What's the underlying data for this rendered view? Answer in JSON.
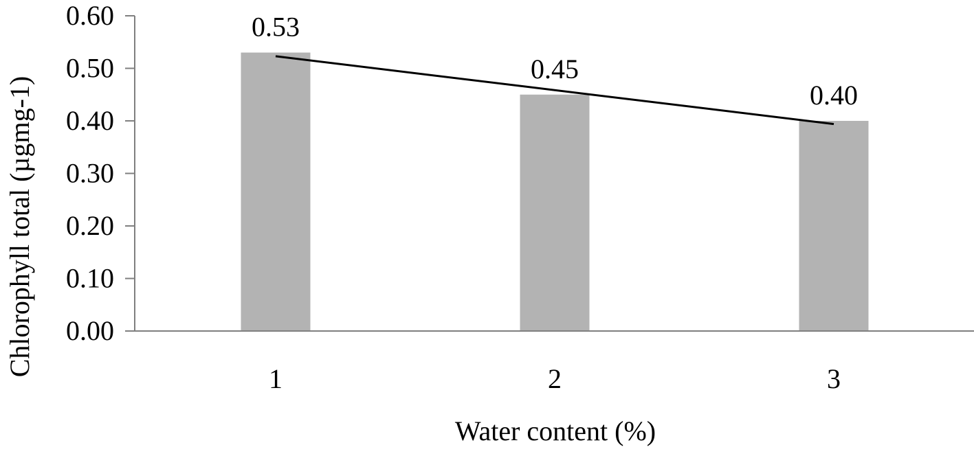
{
  "chart_data": {
    "type": "bar",
    "categories": [
      "1",
      "2",
      "3"
    ],
    "series": [
      {
        "values": [
          0.53,
          0.45,
          0.4
        ],
        "color": "#b3b3b3",
        "data_labels": [
          "0.53",
          "0.45",
          "0.40"
        ]
      }
    ],
    "trendline": {
      "type": "linear",
      "color": "#000000",
      "start": 0.523,
      "end": 0.394
    },
    "title": "",
    "xlabel": "Water content (%)",
    "ylabel": "Chlorophyll total (µgmg-1)",
    "ylim": [
      0.0,
      0.6
    ],
    "yticks": [
      0.0,
      0.1,
      0.2,
      0.3,
      0.4,
      0.5,
      0.6
    ],
    "ytick_labels": [
      "0.00",
      "0.10",
      "0.20",
      "0.30",
      "0.40",
      "0.50",
      "0.60"
    ],
    "grid": false,
    "legend": "none",
    "axis_color": "#7f7f7f"
  }
}
